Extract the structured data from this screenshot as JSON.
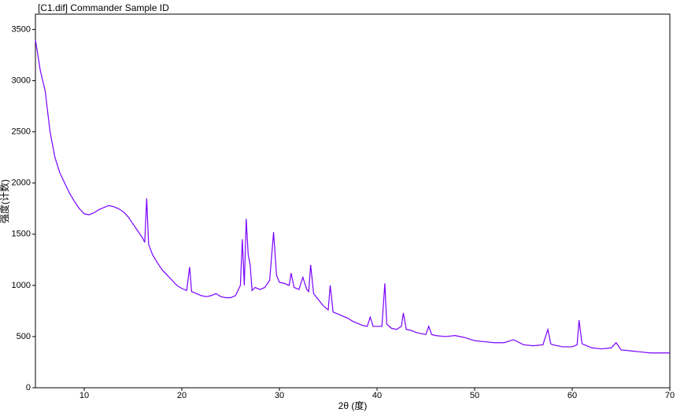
{
  "chart_data": {
    "type": "line",
    "title": "[C1.dif] Commander Sample ID",
    "title_color": "#9b30d0",
    "x_label": "2θ (度)",
    "y_label": "强度(计数)",
    "xlim": [
      5,
      70
    ],
    "ylim": [
      0,
      3650
    ],
    "xticks": [
      10,
      20,
      30,
      40,
      50,
      60,
      70
    ],
    "yticks": [
      0,
      500,
      1000,
      1500,
      2000,
      2500,
      3000,
      3500
    ],
    "grid": false,
    "x": [
      5,
      5.5,
      6,
      6.5,
      7,
      7.5,
      8,
      8.5,
      9,
      9.5,
      10,
      10.5,
      11,
      11.5,
      12,
      12.5,
      13,
      13.5,
      14,
      14.5,
      15,
      15.5,
      16,
      16.2,
      16.4,
      16.6,
      17,
      17.5,
      18,
      18.5,
      19,
      19.5,
      20,
      20.5,
      20.8,
      21,
      21.5,
      22,
      22.5,
      23,
      23.5,
      24,
      24.5,
      25,
      25.5,
      26,
      26.2,
      26.4,
      26.6,
      26.8,
      27,
      27.2,
      27.5,
      28,
      28.5,
      29,
      29.4,
      29.7,
      30,
      30.5,
      31,
      31.2,
      31.5,
      32,
      32.4,
      32.8,
      33,
      33.2,
      33.5,
      34,
      34.5,
      35,
      35.2,
      35.5,
      36,
      36.5,
      37,
      37.5,
      38,
      38.5,
      39,
      39.3,
      39.6,
      40,
      40.5,
      40.8,
      41,
      41.5,
      42,
      42.5,
      42.7,
      43,
      43.5,
      44,
      44.5,
      45,
      45.3,
      45.6,
      46,
      47,
      48,
      49,
      50,
      51,
      52,
      53,
      54,
      55,
      56,
      57,
      57.5,
      57.8,
      58,
      59,
      60,
      60.5,
      60.7,
      61,
      62,
      63,
      64,
      64.5,
      65,
      66,
      67,
      68,
      69,
      70
    ],
    "series": [
      {
        "name": "C1",
        "color": "#7a00ff",
        "values": [
          3400,
          3100,
          2900,
          2500,
          2250,
          2100,
          2000,
          1900,
          1820,
          1750,
          1700,
          1690,
          1710,
          1740,
          1760,
          1780,
          1770,
          1750,
          1720,
          1670,
          1600,
          1530,
          1460,
          1420,
          1850,
          1400,
          1300,
          1220,
          1150,
          1100,
          1050,
          1000,
          970,
          950,
          1180,
          940,
          920,
          900,
          890,
          900,
          920,
          890,
          880,
          880,
          900,
          1000,
          1450,
          1000,
          1650,
          1300,
          1200,
          950,
          980,
          960,
          980,
          1050,
          1520,
          1100,
          1030,
          1020,
          1000,
          1120,
          980,
          960,
          1080,
          960,
          940,
          1200,
          920,
          860,
          800,
          760,
          1000,
          740,
          720,
          700,
          680,
          650,
          630,
          610,
          600,
          690,
          600,
          600,
          600,
          1020,
          620,
          580,
          570,
          600,
          730,
          570,
          560,
          540,
          530,
          520,
          600,
          520,
          510,
          500,
          510,
          490,
          460,
          450,
          440,
          440,
          470,
          420,
          410,
          420,
          570,
          430,
          420,
          400,
          400,
          420,
          660,
          430,
          390,
          380,
          390,
          440,
          370,
          360,
          350,
          340,
          340,
          340
        ]
      }
    ]
  }
}
